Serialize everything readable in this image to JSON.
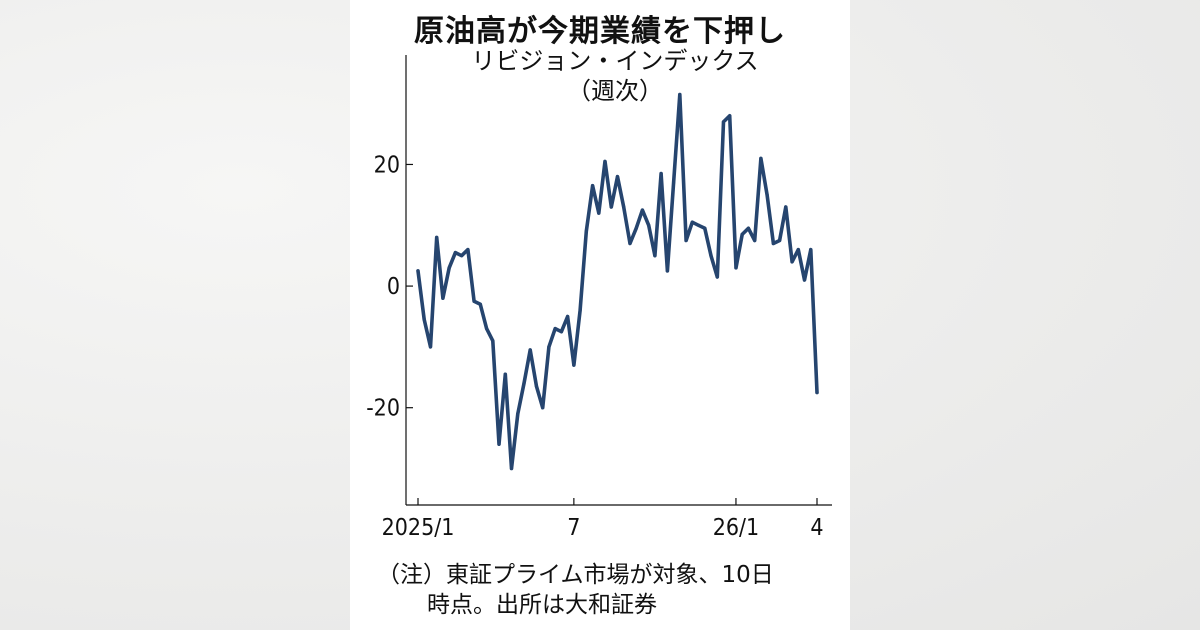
{
  "chart_data": {
    "type": "line",
    "title": "原油高が今期業績を下押し",
    "subtitle_line1": "リビジョン・インデックス",
    "subtitle_line2": "（週次）",
    "note_line1": "（注）東証プライム市場が対象、10日",
    "note_line2": "時点。出所は大和証券",
    "y_ticks": [
      20,
      0,
      -20
    ],
    "y_tick_labels": [
      "20",
      "0",
      "-20"
    ],
    "x_ticks": [
      {
        "index": 0,
        "label": "2025/1"
      },
      {
        "index": 25,
        "label": "7"
      },
      {
        "index": 51,
        "label": "26/1"
      },
      {
        "index": 64,
        "label": "4"
      }
    ],
    "ylim": [
      -36,
      38
    ],
    "line_color": "#26456f",
    "series": [
      {
        "values": [
          2.5,
          -5.5,
          -10,
          8,
          -2,
          3,
          5.5,
          5,
          6,
          -2.5,
          -3,
          -7,
          -9,
          -26,
          -14.5,
          -30,
          -21,
          -16,
          -10.5,
          -16.5,
          -20,
          -10,
          -7,
          -7.5,
          -5,
          -13,
          -4,
          9,
          16.5,
          12,
          20.5,
          13,
          18,
          13,
          7,
          9.5,
          12.5,
          10,
          5,
          18.5,
          2.5,
          17,
          31.5,
          7.5,
          10.5,
          10,
          9.5,
          5,
          1.5,
          27,
          28,
          3,
          8.5,
          9.5,
          7.5,
          21,
          15,
          7,
          7.5,
          13,
          4,
          6,
          1,
          6,
          -17.5
        ]
      }
    ]
  }
}
